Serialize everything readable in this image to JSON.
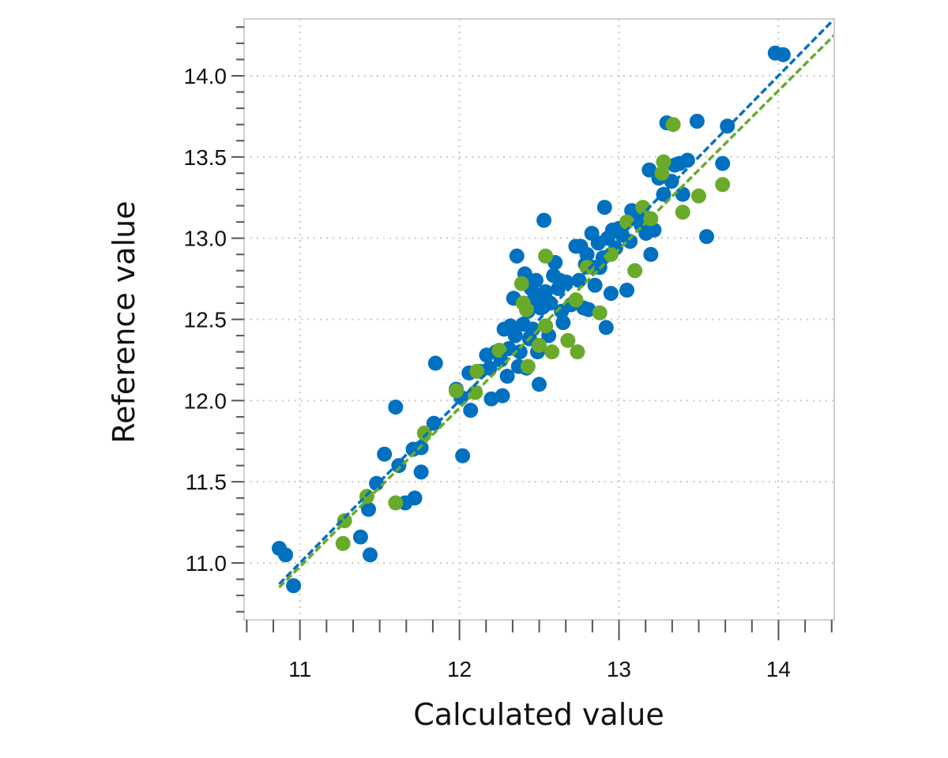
{
  "colors": {
    "calibration": "#0070c0",
    "validation": "#6aaa2a",
    "grid": "#c8c8c8",
    "frame": "#cfcfcf",
    "tick": "#555555",
    "text": "#111111"
  },
  "chart_data": {
    "type": "scatter",
    "title": "",
    "xlabel": "Calculated value",
    "ylabel": "Reference value",
    "xlim": [
      10.65,
      14.35
    ],
    "ylim": [
      10.65,
      14.35
    ],
    "x_ticks": [
      11,
      12,
      13,
      14
    ],
    "x_tick_labels": [
      "11",
      "12",
      "13",
      "14"
    ],
    "y_ticks": [
      11.0,
      11.5,
      12.0,
      12.5,
      13.0,
      13.5,
      14.0
    ],
    "y_tick_labels": [
      "11.0",
      "11.5",
      "12.0",
      "12.5",
      "13.0",
      "13.5",
      "14.0"
    ],
    "x_minor_step": 0.1667,
    "y_minor_step": 0.1,
    "grid": true,
    "grid_style": "dotted",
    "series": [
      {
        "color": "#0070c0",
        "marker": "circle",
        "fit_line": {
          "x": [
            10.87,
            14.35
          ],
          "y": [
            10.87,
            14.35
          ]
        },
        "points": [
          [
            10.87,
            11.09
          ],
          [
            10.91,
            11.05
          ],
          [
            10.96,
            10.86
          ],
          [
            11.38,
            11.16
          ],
          [
            11.43,
            11.33
          ],
          [
            11.44,
            11.05
          ],
          [
            11.48,
            11.49
          ],
          [
            11.53,
            11.67
          ],
          [
            11.6,
            11.96
          ],
          [
            11.62,
            11.6
          ],
          [
            11.66,
            11.37
          ],
          [
            11.71,
            11.7
          ],
          [
            11.72,
            11.4
          ],
          [
            11.76,
            11.71
          ],
          [
            11.76,
            11.56
          ],
          [
            11.84,
            11.86
          ],
          [
            11.85,
            12.23
          ],
          [
            11.98,
            12.07
          ],
          [
            12.01,
            12.02
          ],
          [
            12.02,
            11.66
          ],
          [
            12.06,
            12.17
          ],
          [
            12.07,
            11.94
          ],
          [
            12.13,
            12.18
          ],
          [
            12.17,
            12.28
          ],
          [
            12.19,
            12.2
          ],
          [
            12.2,
            12.01
          ],
          [
            12.23,
            12.3
          ],
          [
            12.26,
            12.25
          ],
          [
            12.27,
            12.03
          ],
          [
            12.28,
            12.44
          ],
          [
            12.3,
            12.15
          ],
          [
            12.31,
            12.32
          ],
          [
            12.32,
            12.46
          ],
          [
            12.34,
            12.63
          ],
          [
            12.35,
            12.4
          ],
          [
            12.36,
            12.89
          ],
          [
            12.37,
            12.21
          ],
          [
            12.38,
            12.3
          ],
          [
            12.4,
            12.47
          ],
          [
            12.41,
            12.78
          ],
          [
            12.42,
            12.2
          ],
          [
            12.43,
            12.55
          ],
          [
            12.44,
            12.38
          ],
          [
            12.45,
            12.69
          ],
          [
            12.46,
            12.44
          ],
          [
            12.47,
            12.63
          ],
          [
            12.48,
            12.74
          ],
          [
            12.49,
            12.3
          ],
          [
            12.5,
            12.1
          ],
          [
            12.51,
            12.57
          ],
          [
            12.52,
            12.64
          ],
          [
            12.53,
            13.11
          ],
          [
            12.54,
            12.67
          ],
          [
            12.56,
            12.4
          ],
          [
            12.57,
            12.6
          ],
          [
            12.59,
            12.77
          ],
          [
            12.6,
            12.85
          ],
          [
            12.62,
            12.69
          ],
          [
            12.63,
            12.74
          ],
          [
            12.64,
            12.55
          ],
          [
            12.65,
            12.48
          ],
          [
            12.67,
            12.73
          ],
          [
            12.7,
            12.59
          ],
          [
            12.73,
            12.95
          ],
          [
            12.75,
            12.74
          ],
          [
            12.76,
            12.95
          ],
          [
            12.78,
            12.57
          ],
          [
            12.79,
            12.84
          ],
          [
            12.8,
            12.9
          ],
          [
            12.81,
            12.56
          ],
          [
            12.83,
            13.03
          ],
          [
            12.84,
            12.82
          ],
          [
            12.85,
            12.71
          ],
          [
            12.87,
            12.97
          ],
          [
            12.88,
            12.82
          ],
          [
            12.9,
            12.88
          ],
          [
            12.91,
            13.19
          ],
          [
            12.92,
            12.45
          ],
          [
            12.93,
            13.0
          ],
          [
            12.95,
            12.66
          ],
          [
            12.96,
            13.05
          ],
          [
            12.98,
            12.94
          ],
          [
            13.0,
            13.06
          ],
          [
            13.02,
            13.02
          ],
          [
            13.05,
            12.68
          ],
          [
            13.07,
            12.98
          ],
          [
            13.08,
            13.17
          ],
          [
            13.12,
            13.13
          ],
          [
            13.14,
            13.08
          ],
          [
            13.17,
            13.03
          ],
          [
            13.19,
            13.42
          ],
          [
            13.2,
            12.9
          ],
          [
            13.22,
            13.05
          ],
          [
            13.25,
            13.37
          ],
          [
            13.28,
            13.27
          ],
          [
            13.3,
            13.71
          ],
          [
            13.33,
            13.35
          ],
          [
            13.35,
            13.45
          ],
          [
            13.38,
            13.46
          ],
          [
            13.4,
            13.27
          ],
          [
            13.43,
            13.48
          ],
          [
            13.49,
            13.72
          ],
          [
            13.55,
            13.01
          ],
          [
            13.65,
            13.46
          ],
          [
            13.68,
            13.69
          ],
          [
            13.98,
            14.14
          ],
          [
            14.03,
            14.13
          ]
        ]
      },
      {
        "color": "#6aaa2a",
        "marker": "circle",
        "fit_line": {
          "x": [
            10.87,
            14.35
          ],
          "y": [
            10.85,
            14.25
          ]
        },
        "points": [
          [
            11.27,
            11.12
          ],
          [
            11.28,
            11.26
          ],
          [
            11.42,
            11.41
          ],
          [
            11.6,
            11.37
          ],
          [
            11.78,
            11.8
          ],
          [
            11.98,
            12.06
          ],
          [
            12.1,
            12.05
          ],
          [
            12.11,
            12.18
          ],
          [
            12.25,
            12.31
          ],
          [
            12.39,
            12.72
          ],
          [
            12.4,
            12.6
          ],
          [
            12.42,
            12.56
          ],
          [
            12.43,
            12.21
          ],
          [
            12.5,
            12.34
          ],
          [
            12.54,
            12.46
          ],
          [
            12.54,
            12.89
          ],
          [
            12.58,
            12.3
          ],
          [
            12.68,
            12.37
          ],
          [
            12.73,
            12.62
          ],
          [
            12.74,
            12.3
          ],
          [
            12.8,
            12.82
          ],
          [
            12.88,
            12.54
          ],
          [
            12.95,
            12.9
          ],
          [
            13.05,
            13.1
          ],
          [
            13.1,
            12.8
          ],
          [
            13.15,
            13.19
          ],
          [
            13.2,
            13.12
          ],
          [
            13.27,
            13.4
          ],
          [
            13.28,
            13.47
          ],
          [
            13.34,
            13.7
          ],
          [
            13.4,
            13.16
          ],
          [
            13.5,
            13.26
          ],
          [
            13.65,
            13.33
          ]
        ]
      }
    ]
  }
}
